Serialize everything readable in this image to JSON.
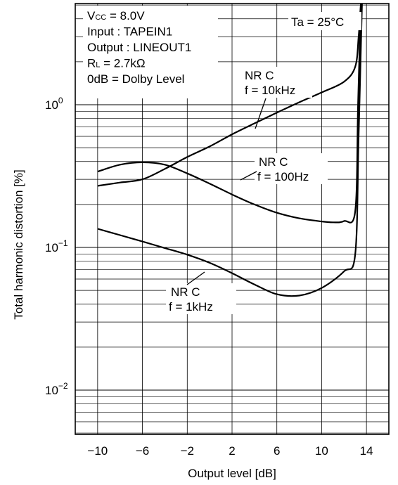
{
  "chart_data": {
    "type": "line",
    "xlabel": "Output level [dB]",
    "ylabel": "Total harmonic distortion [%]",
    "x_ticks": [
      -10,
      -6,
      -2,
      2,
      6,
      10,
      14
    ],
    "x_tick_labels": [
      "−10",
      "−6",
      "−2",
      "2",
      "6",
      "10",
      "14"
    ],
    "xlim": [
      -12,
      16
    ],
    "ylim": [
      0.005,
      5
    ],
    "y_scale": "log",
    "y_ticks": [
      {
        "value": 0.01,
        "base": "10",
        "exp": "−2"
      },
      {
        "value": 0.1,
        "base": "10",
        "exp": "−1"
      },
      {
        "value": 1,
        "base": "10",
        "exp": "0"
      }
    ],
    "grid": true,
    "conditions": [
      {
        "main": "V",
        "sub": "CC",
        "rest": " = 8.0V"
      },
      {
        "main": "Input : TAPEIN1",
        "sub": "",
        "rest": ""
      },
      {
        "main": "Output : LINEOUT1",
        "sub": "",
        "rest": ""
      },
      {
        "main": "R",
        "sub": "L",
        "rest": " = 2.7kΩ"
      },
      {
        "main": "0dB = Dolby Level",
        "sub": "",
        "rest": ""
      }
    ],
    "ta_label": "Ta = 25°C",
    "series": [
      {
        "label_line1": "NR C",
        "label_line2": "f = 10kHz",
        "x": [
          -10,
          -8,
          -6,
          -4,
          -2,
          0,
          2,
          4,
          6,
          8,
          10,
          12,
          13,
          13.3,
          13.5
        ],
        "y": [
          0.27,
          0.285,
          0.3,
          0.355,
          0.43,
          0.51,
          0.62,
          0.74,
          0.88,
          1.04,
          1.22,
          1.45,
          1.85,
          3.0,
          5.5
        ]
      },
      {
        "label_line1": "NR C",
        "label_line2": "f = 100Hz",
        "x": [
          -10,
          -8,
          -6,
          -4,
          -2,
          0,
          2,
          4,
          6,
          8,
          10,
          11,
          12,
          13,
          13.25,
          13.5
        ],
        "y": [
          0.34,
          0.38,
          0.395,
          0.38,
          0.33,
          0.28,
          0.235,
          0.2,
          0.175,
          0.16,
          0.152,
          0.15,
          0.153,
          0.18,
          1.0,
          5.5
        ]
      },
      {
        "label_line1": "NR C",
        "label_line2": "f = 1kHz",
        "x": [
          -10,
          -8,
          -6,
          -4,
          -2,
          0,
          2,
          4,
          6,
          8,
          10,
          12,
          13,
          13.3,
          13.6
        ],
        "y": [
          0.135,
          0.122,
          0.11,
          0.099,
          0.089,
          0.078,
          0.066,
          0.055,
          0.047,
          0.046,
          0.052,
          0.068,
          0.09,
          0.6,
          5.5
        ]
      }
    ]
  }
}
